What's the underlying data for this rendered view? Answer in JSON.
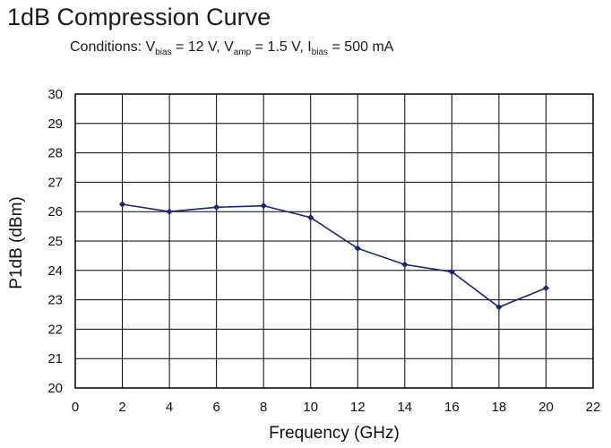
{
  "title": "1dB Compression Curve",
  "subtitle": {
    "prefix": "Conditions: V",
    "sub1": "bias",
    "part2": " = 12 V, V",
    "sub2": "amp",
    "part3": " = 1.5 V, I",
    "sub3": "bias",
    "part4": " = 500 mA"
  },
  "chart_data": {
    "type": "line",
    "title": "1dB Compression Curve",
    "xlabel": "Frequency (GHz)",
    "ylabel": "P1dB (dBm)",
    "xlim": [
      0,
      22
    ],
    "ylim": [
      20,
      30
    ],
    "xticks": [
      0,
      2,
      4,
      6,
      8,
      10,
      12,
      14,
      16,
      18,
      20,
      22
    ],
    "yticks": [
      20,
      21,
      22,
      23,
      24,
      25,
      26,
      27,
      28,
      29,
      30
    ],
    "grid": true,
    "series": [
      {
        "x": [
          2,
          4,
          6,
          8,
          10,
          12,
          14,
          16,
          18,
          20
        ],
        "y": [
          26.25,
          26.0,
          26.15,
          26.2,
          25.8,
          24.75,
          24.2,
          23.95,
          22.75,
          23.4
        ],
        "color": "#1a237e",
        "marker": "diamond"
      }
    ]
  }
}
